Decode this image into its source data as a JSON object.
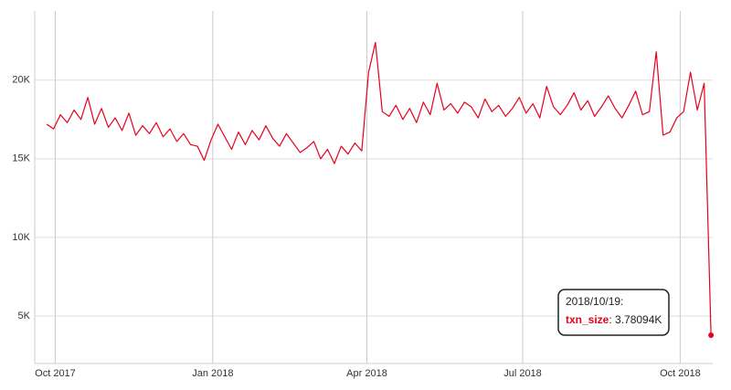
{
  "chart_data": {
    "type": "line",
    "x": [
      "2017/09/26",
      "2017/09/30",
      "2017/10/04",
      "2017/10/08",
      "2017/10/12",
      "2017/10/16",
      "2017/10/20",
      "2017/10/24",
      "2017/10/28",
      "2017/11/01",
      "2017/11/05",
      "2017/11/09",
      "2017/11/13",
      "2017/11/17",
      "2017/11/21",
      "2017/11/25",
      "2017/11/29",
      "2017/12/03",
      "2017/12/07",
      "2017/12/11",
      "2017/12/15",
      "2017/12/19",
      "2017/12/23",
      "2017/12/27",
      "2017/12/31",
      "2018/01/04",
      "2018/01/08",
      "2018/01/12",
      "2018/01/16",
      "2018/01/20",
      "2018/01/24",
      "2018/01/28",
      "2018/02/01",
      "2018/02/05",
      "2018/02/09",
      "2018/02/13",
      "2018/02/17",
      "2018/02/21",
      "2018/02/25",
      "2018/03/01",
      "2018/03/05",
      "2018/03/09",
      "2018/03/13",
      "2018/03/17",
      "2018/03/21",
      "2018/03/25",
      "2018/03/29",
      "2018/04/02",
      "2018/04/06",
      "2018/04/10",
      "2018/04/14",
      "2018/04/18",
      "2018/04/22",
      "2018/04/26",
      "2018/04/30",
      "2018/05/04",
      "2018/05/08",
      "2018/05/12",
      "2018/05/16",
      "2018/05/20",
      "2018/05/24",
      "2018/05/28",
      "2018/06/01",
      "2018/06/05",
      "2018/06/09",
      "2018/06/13",
      "2018/06/17",
      "2018/06/21",
      "2018/06/25",
      "2018/06/29",
      "2018/07/03",
      "2018/07/07",
      "2018/07/11",
      "2018/07/15",
      "2018/07/19",
      "2018/07/23",
      "2018/07/27",
      "2018/07/31",
      "2018/08/04",
      "2018/08/08",
      "2018/08/12",
      "2018/08/16",
      "2018/08/20",
      "2018/08/24",
      "2018/08/28",
      "2018/09/01",
      "2018/09/05",
      "2018/09/09",
      "2018/09/13",
      "2018/09/17",
      "2018/09/21",
      "2018/09/25",
      "2018/09/29",
      "2018/10/03",
      "2018/10/07",
      "2018/10/11",
      "2018/10/15",
      "2018/10/19"
    ],
    "series": [
      {
        "name": "txn_size",
        "color": "#e8001c",
        "values": [
          17200,
          16900,
          17800,
          17300,
          18100,
          17500,
          18900,
          17200,
          18200,
          17000,
          17600,
          16800,
          17900,
          16500,
          17100,
          16600,
          17300,
          16400,
          16900,
          16100,
          16600,
          15900,
          15800,
          14900,
          16200,
          17200,
          16400,
          15600,
          16700,
          15900,
          16800,
          16200,
          17100,
          16300,
          15800,
          16600,
          16000,
          15400,
          15700,
          16100,
          15000,
          15600,
          14700,
          15800,
          15300,
          16000,
          15500,
          20500,
          22400,
          18000,
          17700,
          18400,
          17500,
          18200,
          17300,
          18600,
          17800,
          19800,
          18100,
          18500,
          17900,
          18600,
          18300,
          17600,
          18800,
          18000,
          18400,
          17700,
          18200,
          18900,
          17900,
          18500,
          17600,
          19600,
          18300,
          17800,
          18400,
          19200,
          18100,
          18700,
          17700,
          18300,
          19000,
          18200,
          17600,
          18400,
          19300,
          17800,
          18000,
          21800,
          16500,
          16700,
          17600,
          18000,
          20500,
          18100,
          19800,
          3780.94
        ]
      }
    ],
    "xlim": [
      "2017/09/19",
      "2018/10/20"
    ],
    "xticks": [
      {
        "value": "2017/10/01",
        "label": "Oct 2017"
      },
      {
        "value": "2018/01/01",
        "label": "Jan 2018"
      },
      {
        "value": "2018/04/01",
        "label": "Apr 2018"
      },
      {
        "value": "2018/07/01",
        "label": "Jul 2018"
      },
      {
        "value": "2018/10/01",
        "label": "Oct 2018"
      }
    ],
    "ylim": [
      1980,
      24400
    ],
    "yticks": [
      {
        "value": 5000,
        "label": "5K"
      },
      {
        "value": 10000,
        "label": "10K"
      },
      {
        "value": 15000,
        "label": "15K"
      },
      {
        "value": 20000,
        "label": "20K"
      }
    ],
    "grid": true,
    "tooltip": {
      "title": "2018/10/19:",
      "value_text": ": 3.78094K"
    }
  }
}
